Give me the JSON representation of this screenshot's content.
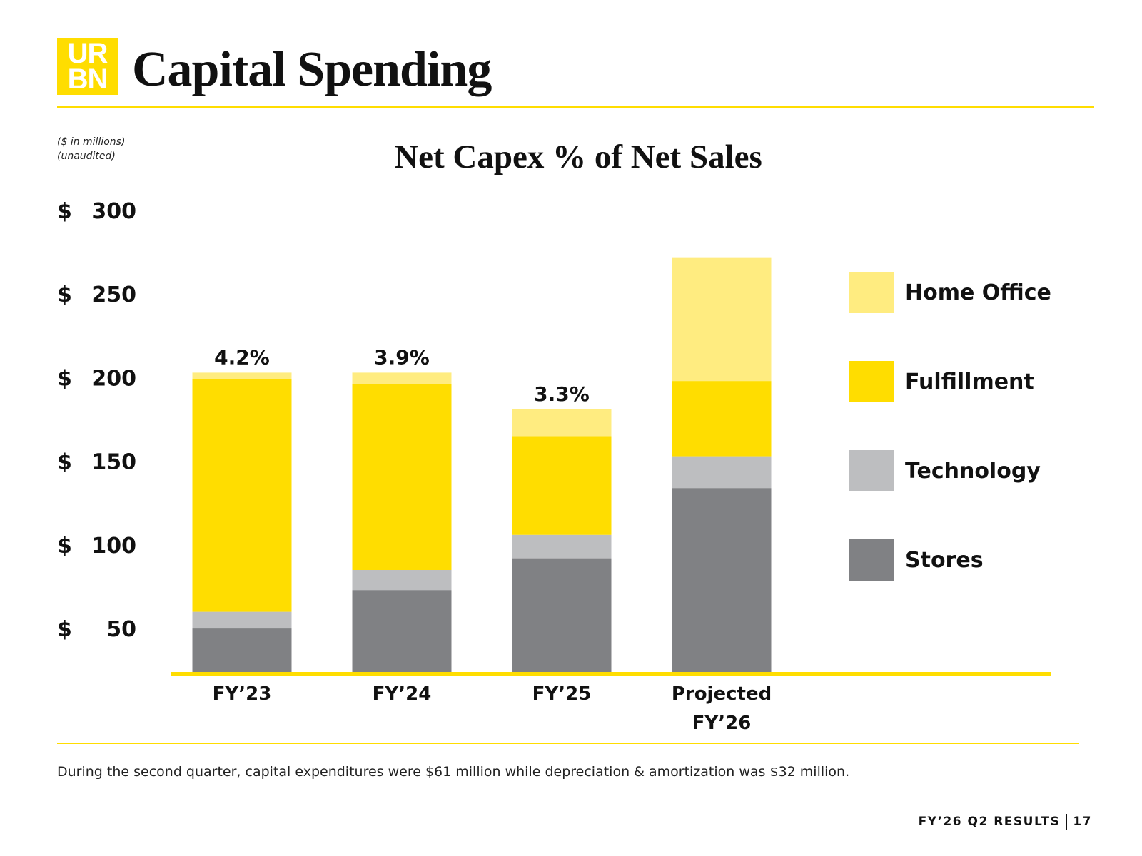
{
  "logo": {
    "line1": "UR",
    "line2": "BN"
  },
  "page_title": "Capital Spending",
  "units_note": [
    "($ in millions)",
    "(unaudited)"
  ],
  "chart_data": {
    "type": "bar",
    "stacked": true,
    "title": "Net Capex % of Net Sales",
    "categories": [
      [
        "FY’23"
      ],
      [
        "FY’24"
      ],
      [
        "FY’25"
      ],
      [
        "Projected",
        "FY’26"
      ]
    ],
    "series": [
      {
        "name": "Stores",
        "color": "#808184",
        "values": [
          26,
          49,
          68,
          110
        ]
      },
      {
        "name": "Technology",
        "color": "#BDBEC0",
        "values": [
          10,
          12,
          14,
          19
        ]
      },
      {
        "name": "Fulfillment",
        "color": "#FFDD00",
        "values": [
          139,
          111,
          59,
          45
        ]
      },
      {
        "name": "Home Office",
        "color": "#FFEC80",
        "values": [
          4,
          7,
          16,
          74
        ]
      }
    ],
    "bar_labels": [
      "4.2%",
      "3.9%",
      "3.3%",
      ""
    ],
    "yticks": [
      "$ 50",
      "$ 100",
      "$ 150",
      "$ 200",
      "$ 250",
      "$ 300"
    ],
    "ytick_values": [
      50,
      100,
      150,
      200,
      250,
      300
    ],
    "ylim": [
      24,
      300
    ],
    "legend_order": [
      "Home Office",
      "Fulfillment",
      "Technology",
      "Stores"
    ],
    "legend_position": "right",
    "axis_color": "#FFDD00"
  },
  "footnote": "During the second quarter, capital expenditures were $61 million while depreciation & amortization was $32 million.",
  "footer": {
    "report": "FY’26 Q2 RESULTS",
    "page": "17"
  }
}
